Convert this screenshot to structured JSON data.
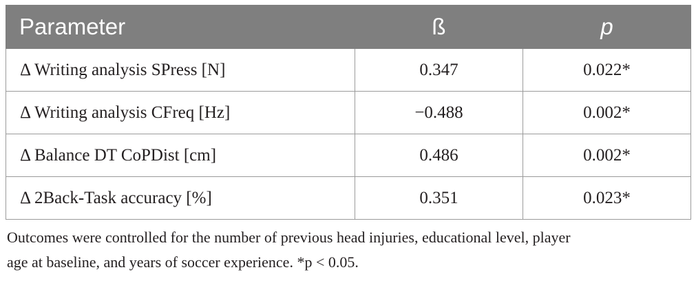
{
  "table": {
    "headers": [
      "Parameter",
      "ß",
      "p"
    ],
    "rows": [
      {
        "parameter": "Δ Writing analysis SPress [N]",
        "beta": "0.347",
        "p": "0.022*"
      },
      {
        "parameter": "Δ Writing analysis CFreq [Hz]",
        "beta": "−0.488",
        "p": "0.002*"
      },
      {
        "parameter": "Δ Balance DT CoPDist [cm]",
        "beta": "0.486",
        "p": "0.002*"
      },
      {
        "parameter": "Δ 2Back-Task accuracy [%]",
        "beta": "0.351",
        "p": "0.023*"
      }
    ]
  },
  "footnote": {
    "line1": "Outcomes were controlled for the number of previous head injuries, educational level, player",
    "line2": "age at baseline, and years of soccer experience. *p < 0.05."
  },
  "colors": {
    "header_bg": "#7f7f7f",
    "header_text": "#ffffff",
    "border": "#9a9a9a",
    "body_text": "#231f20"
  }
}
